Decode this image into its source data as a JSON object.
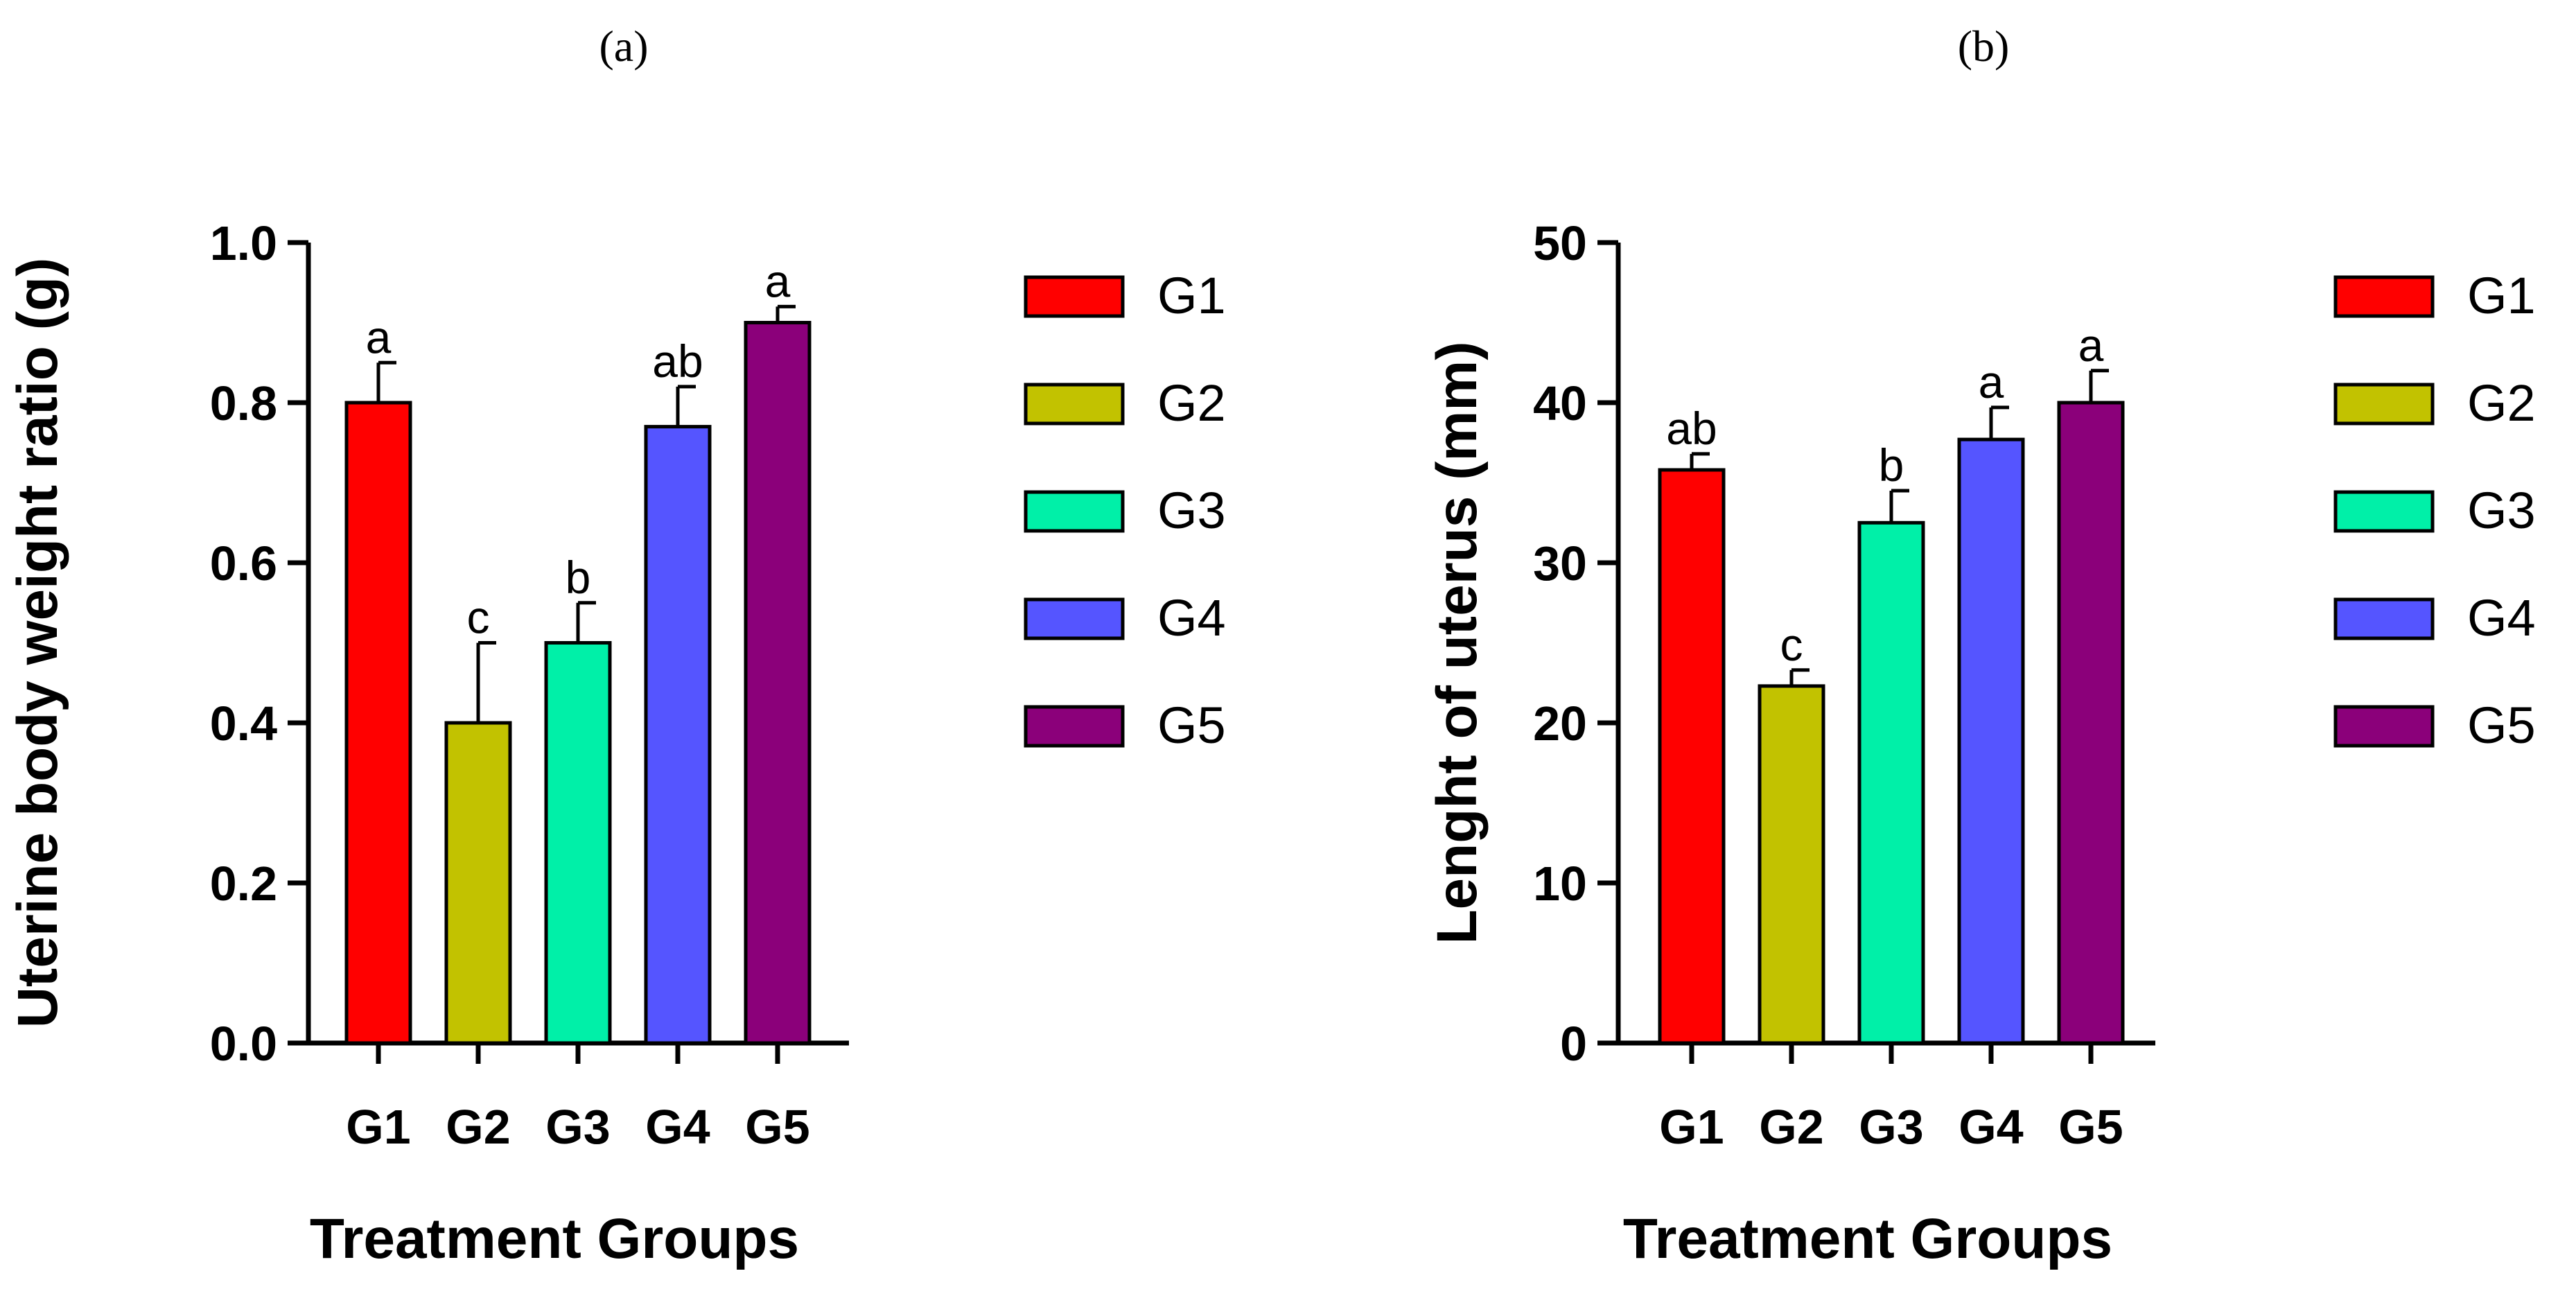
{
  "chart_data": [
    {
      "type": "bar",
      "panel_label": "(a)",
      "categories": [
        "G1",
        "G2",
        "G3",
        "G4",
        "G5"
      ],
      "values": [
        0.8,
        0.4,
        0.5,
        0.77,
        0.9
      ],
      "errors": [
        0.05,
        0.1,
        0.05,
        0.05,
        0.02
      ],
      "significance": [
        "a",
        "c",
        "b",
        "ab",
        "a"
      ],
      "colors": [
        "#ff0000",
        "#c2c200",
        "#00f0a8",
        "#5555ff",
        "#8b007a"
      ],
      "ylabel": "Uterine body weight ratio (g)",
      "xlabel": "Treatment Groups",
      "ylim": [
        0,
        1.0
      ],
      "yticks": [
        "0.0",
        "0.2",
        "0.4",
        "0.6",
        "0.8",
        "1.0"
      ],
      "legend": [
        "G1",
        "G2",
        "G3",
        "G4",
        "G5"
      ]
    },
    {
      "type": "bar",
      "panel_label": "(b)",
      "categories": [
        "G1",
        "G2",
        "G3",
        "G4",
        "G5"
      ],
      "values": [
        35.8,
        22.3,
        32.5,
        37.7,
        40.0
      ],
      "errors": [
        1.0,
        1.0,
        2.0,
        2.0,
        2.0
      ],
      "significance": [
        "ab",
        "c",
        "b",
        "a",
        "a"
      ],
      "colors": [
        "#ff0000",
        "#c2c200",
        "#00f0a8",
        "#5555ff",
        "#8b007a"
      ],
      "ylabel": "Lenght of uterus (mm)",
      "xlabel": "Treatment Groups",
      "ylim": [
        0,
        50
      ],
      "yticks": [
        "0",
        "10",
        "20",
        "30",
        "40",
        "50"
      ],
      "legend": [
        "G1",
        "G2",
        "G3",
        "G4",
        "G5"
      ]
    }
  ]
}
